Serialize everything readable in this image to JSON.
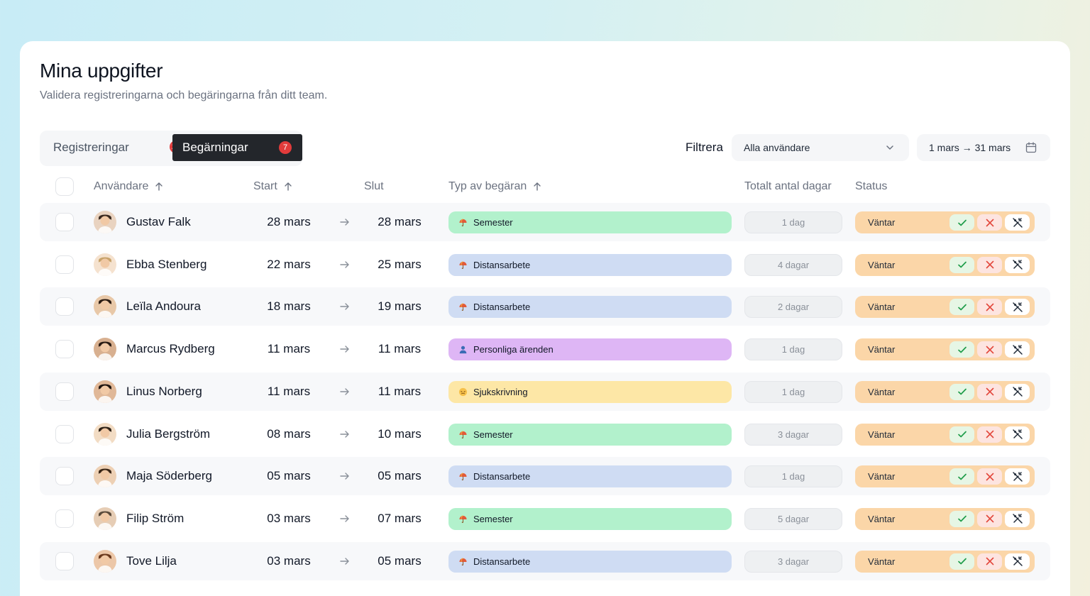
{
  "page": {
    "title": "Mina uppgifter",
    "subtitle": "Validera registreringarna och begäringarna från ditt team."
  },
  "tabs": [
    {
      "label": "Registreringar",
      "count": "23"
    },
    {
      "label": "Begärningar",
      "count": "7"
    }
  ],
  "filter": {
    "label": "Filtrera",
    "users_value": "Alla användare",
    "date_range": "1 mars → 31 mars"
  },
  "columns": {
    "user": "Användare",
    "start": "Start",
    "end": "Slut",
    "type": "Typ av begäran",
    "total_days": "Totalt antal dagar",
    "status": "Status"
  },
  "colors": {
    "Semester": "#b2f1cc",
    "Distansarbete": "#cfdcf3",
    "Personliga ärenden": "#deb6f5",
    "Sjukskrivning": "#fde7a6",
    "status_bg": "#fbd6a8"
  },
  "rows": [
    {
      "name": "Gustav Falk",
      "start": "28 mars",
      "end": "28 mars",
      "type": "Semester",
      "type_icon": "umbrella-icon",
      "days": "1 dag",
      "status": "Väntar"
    },
    {
      "name": "Ebba Stenberg",
      "start": "22 mars",
      "end": "25 mars",
      "type": "Distansarbete",
      "type_icon": "umbrella-icon",
      "days": "4 dagar",
      "status": "Väntar"
    },
    {
      "name": "Leïla Andoura",
      "start": "18 mars",
      "end": "19 mars",
      "type": "Distansarbete",
      "type_icon": "umbrella-icon",
      "days": "2 dagar",
      "status": "Väntar"
    },
    {
      "name": "Marcus Rydberg",
      "start": "11 mars",
      "end": "11 mars",
      "type": "Personliga ärenden",
      "type_icon": "person-icon",
      "days": "1 dag",
      "status": "Väntar"
    },
    {
      "name": "Linus Norberg",
      "start": "11 mars",
      "end": "11 mars",
      "type": "Sjukskrivning",
      "type_icon": "sick-face-icon",
      "days": "1 dag",
      "status": "Väntar"
    },
    {
      "name": "Julia Bergström",
      "start": "08 mars",
      "end": "10 mars",
      "type": "Semester",
      "type_icon": "umbrella-icon",
      "days": "3 dagar",
      "status": "Väntar"
    },
    {
      "name": "Maja Söderberg",
      "start": "05 mars",
      "end": "05 mars",
      "type": "Distansarbete",
      "type_icon": "umbrella-icon",
      "days": "1 dag",
      "status": "Väntar"
    },
    {
      "name": "Filip Ström",
      "start": "03 mars",
      "end": "07 mars",
      "type": "Semester",
      "type_icon": "umbrella-icon",
      "days": "5 dagar",
      "status": "Väntar"
    },
    {
      "name": "Tove Lilja",
      "start": "03 mars",
      "end": "05 mars",
      "type": "Distansarbete",
      "type_icon": "umbrella-icon",
      "days": "3 dagar",
      "status": "Väntar"
    }
  ]
}
